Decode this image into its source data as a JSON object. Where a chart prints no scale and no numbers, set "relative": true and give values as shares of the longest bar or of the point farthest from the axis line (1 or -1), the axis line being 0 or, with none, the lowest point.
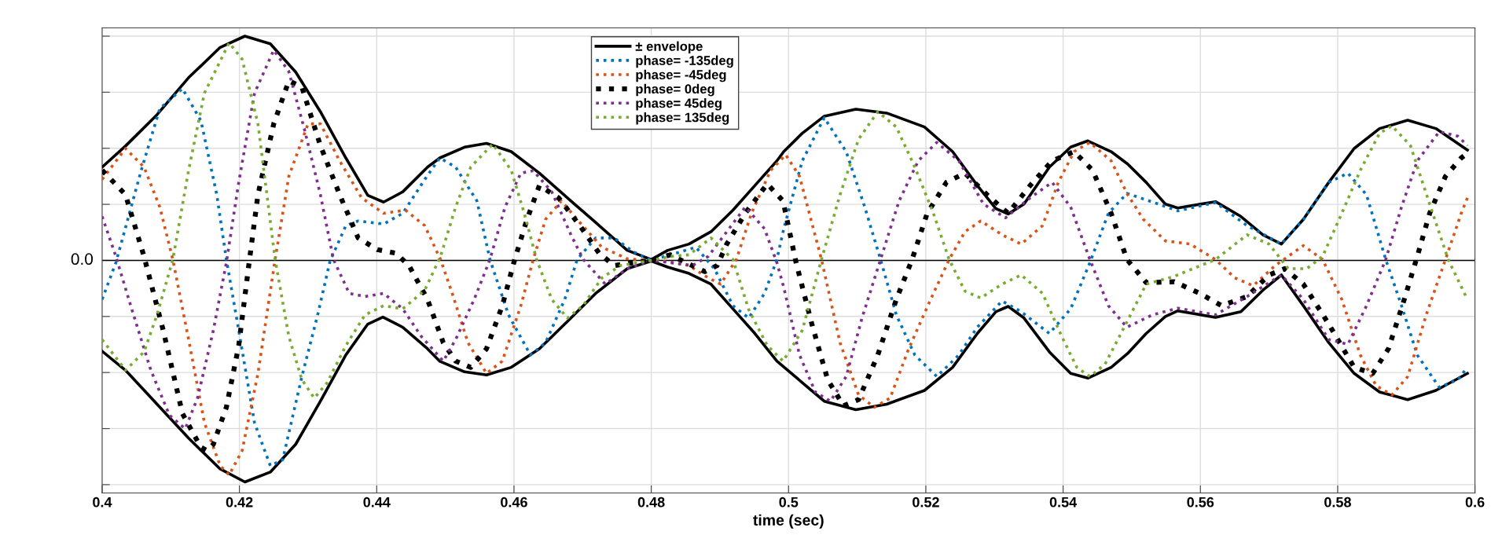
{
  "chart_data": {
    "type": "line",
    "xlabel": "time (sec)",
    "relative": true,
    "xlim": [
      0.4,
      0.6
    ],
    "xticks": [
      0.4,
      0.42,
      0.44,
      0.46,
      0.48,
      0.5,
      0.52,
      0.54,
      0.56,
      0.58,
      0.6
    ],
    "grid": true,
    "legend": "top",
    "marker": "none",
    "ref_lines": [
      {
        "axis": "y",
        "value": 0,
        "label": "0.0",
        "color": "#000000",
        "line_style": "solid"
      }
    ],
    "series": [
      {
        "name": "± envelope",
        "color": "#000000",
        "line_style": "solid",
        "x": [
          0.4,
          0.4034,
          0.408,
          0.4126,
          0.4172,
          0.4208,
          0.4245,
          0.4282,
          0.4318,
          0.4355,
          0.4387,
          0.441,
          0.4438,
          0.4474,
          0.4492,
          0.4528,
          0.456,
          0.4596,
          0.4637,
          0.4683,
          0.4719,
          0.4765,
          0.48,
          0.4824,
          0.4855,
          0.4887,
          0.4919,
          0.4951,
          0.4983,
          0.4993,
          0.502,
          0.5052,
          0.5098,
          0.5143,
          0.5198,
          0.5239,
          0.5275,
          0.5302,
          0.532,
          0.5343,
          0.538,
          0.5411,
          0.5436,
          0.547,
          0.5494,
          0.5521,
          0.5549,
          0.5567,
          0.5622,
          0.5659,
          0.5691,
          0.5718,
          0.575,
          0.5787,
          0.5824,
          0.5861,
          0.5902,
          0.5943,
          0.5989
        ],
        "values": [
          0.416,
          0.51,
          0.65,
          0.815,
          0.95,
          1.0,
          0.966,
          0.84,
          0.663,
          0.457,
          0.29,
          0.26,
          0.306,
          0.416,
          0.457,
          0.505,
          0.522,
          0.485,
          0.389,
          0.265,
          0.169,
          0.045,
          0.004,
          0.045,
          0.073,
          0.128,
          0.224,
          0.334,
          0.444,
          0.485,
          0.567,
          0.643,
          0.674,
          0.657,
          0.595,
          0.485,
          0.334,
          0.231,
          0.207,
          0.251,
          0.416,
          0.505,
          0.533,
          0.485,
          0.43,
          0.348,
          0.251,
          0.234,
          0.262,
          0.196,
          0.114,
          0.073,
          0.183,
          0.348,
          0.499,
          0.588,
          0.625,
          0.588,
          0.492
        ]
      },
      {
        "color": "#000000",
        "line_style": "solid",
        "x": [
          0.4,
          0.4034,
          0.408,
          0.4126,
          0.4172,
          0.4208,
          0.4245,
          0.4282,
          0.4318,
          0.4355,
          0.4387,
          0.4409,
          0.4438,
          0.4474,
          0.4492,
          0.4528,
          0.456,
          0.4596,
          0.4637,
          0.4683,
          0.4719,
          0.4765,
          0.48,
          0.4824,
          0.4855,
          0.4887,
          0.4919,
          0.4951,
          0.4983,
          0.502,
          0.5052,
          0.5098,
          0.5143,
          0.5198,
          0.5239,
          0.5275,
          0.5302,
          0.532,
          0.5343,
          0.538,
          0.5411,
          0.5436,
          0.547,
          0.5494,
          0.5521,
          0.5549,
          0.5567,
          0.5622,
          0.5659,
          0.5691,
          0.5718,
          0.575,
          0.5787,
          0.5824,
          0.5861,
          0.5902,
          0.5943,
          0.5989
        ],
        "values": [
          -0.405,
          -0.49,
          -0.641,
          -0.793,
          -0.93,
          -0.988,
          -0.944,
          -0.82,
          -0.628,
          -0.422,
          -0.284,
          -0.253,
          -0.298,
          -0.394,
          -0.45,
          -0.497,
          -0.511,
          -0.477,
          -0.394,
          -0.257,
          -0.147,
          -0.037,
          -0.003,
          -0.03,
          -0.058,
          -0.106,
          -0.216,
          -0.326,
          -0.449,
          -0.545,
          -0.628,
          -0.666,
          -0.641,
          -0.58,
          -0.477,
          -0.326,
          -0.229,
          -0.205,
          -0.257,
          -0.408,
          -0.504,
          -0.525,
          -0.477,
          -0.415,
          -0.326,
          -0.25,
          -0.225,
          -0.254,
          -0.229,
          -0.133,
          -0.065,
          -0.202,
          -0.367,
          -0.504,
          -0.587,
          -0.621,
          -0.58,
          -0.504
        ]
      },
      {
        "name": "phase= -135deg",
        "color": "#0072bd",
        "line_style": "dotted",
        "x": [
          0.4,
          0.402,
          0.4057,
          0.4084,
          0.4117,
          0.4144,
          0.4167,
          0.4181,
          0.4199,
          0.4222,
          0.4245,
          0.4263,
          0.4291,
          0.4314,
          0.4332,
          0.4355,
          0.4373,
          0.441,
          0.4438,
          0.447,
          0.4492,
          0.4515,
          0.4546,
          0.4565,
          0.4592,
          0.4624,
          0.4646,
          0.4674,
          0.4692,
          0.4719,
          0.4746,
          0.4774,
          0.48,
          0.4828,
          0.4865,
          0.4892,
          0.4919,
          0.4942,
          0.4965,
          0.4983,
          0.4993,
          0.502,
          0.5052,
          0.5084,
          0.5111,
          0.5134,
          0.5157,
          0.5184,
          0.5216,
          0.5248,
          0.5275,
          0.5311,
          0.5339,
          0.538,
          0.5411,
          0.5439,
          0.5466,
          0.5493,
          0.5539,
          0.5567,
          0.5622,
          0.5668,
          0.5718,
          0.575,
          0.5787,
          0.5815,
          0.5842,
          0.587,
          0.5893,
          0.5916,
          0.5948,
          0.5975,
          0.5989
        ],
        "values": [
          -0.174,
          -0.01,
          0.402,
          0.677,
          0.766,
          0.622,
          0.293,
          0.004,
          -0.312,
          -0.724,
          -0.916,
          -0.889,
          -0.518,
          -0.243,
          -0.003,
          0.155,
          0.176,
          0.162,
          0.21,
          0.361,
          0.457,
          0.416,
          0.265,
          0.004,
          -0.243,
          -0.422,
          -0.367,
          -0.174,
          0.004,
          0.1,
          0.1,
          0.038,
          0.0,
          0.025,
          0.059,
          -0.037,
          -0.202,
          -0.257,
          -0.147,
          0.004,
          0.141,
          0.444,
          0.636,
          0.485,
          0.238,
          0.004,
          -0.243,
          -0.422,
          -0.518,
          -0.422,
          -0.298,
          -0.181,
          -0.229,
          -0.326,
          -0.216,
          -0.01,
          0.21,
          0.299,
          0.251,
          0.221,
          0.258,
          0.155,
          0.073,
          0.183,
          0.348,
          0.389,
          0.293,
          0.004,
          -0.202,
          -0.422,
          -0.566,
          -0.532,
          -0.477
        ]
      },
      {
        "name": "phase= -45deg",
        "color": "#d95319",
        "line_style": "dotted",
        "x": [
          0.4,
          0.4034,
          0.4061,
          0.4084,
          0.4103,
          0.4126,
          0.4149,
          0.4172,
          0.4185,
          0.4204,
          0.4227,
          0.4252,
          0.4272,
          0.43,
          0.4318,
          0.4346,
          0.4378,
          0.441,
          0.4442,
          0.447,
          0.4493,
          0.451,
          0.4533,
          0.456,
          0.4583,
          0.461,
          0.4628,
          0.4646,
          0.4669,
          0.4696,
          0.4728,
          0.4765,
          0.48,
          0.4828,
          0.4855,
          0.4883,
          0.4901,
          0.4924,
          0.4946,
          0.4974,
          0.4996,
          0.5016,
          0.5048,
          0.5075,
          0.5102,
          0.5125,
          0.5148,
          0.5175,
          0.5207,
          0.5234,
          0.5257,
          0.528,
          0.5311,
          0.5339,
          0.537,
          0.5393,
          0.5416,
          0.5439,
          0.547,
          0.5494,
          0.5517,
          0.5549,
          0.5585,
          0.5622,
          0.565,
          0.5677,
          0.5709,
          0.575,
          0.5778,
          0.5806,
          0.5833,
          0.5856,
          0.5879,
          0.5902,
          0.5929,
          0.5957,
          0.598,
          0.5989
        ],
        "values": [
          0.361,
          0.499,
          0.416,
          0.238,
          0.004,
          -0.353,
          -0.724,
          -0.916,
          -0.957,
          -0.848,
          -0.504,
          0.004,
          0.375,
          0.609,
          0.609,
          0.444,
          0.279,
          0.21,
          0.224,
          0.155,
          0.004,
          -0.147,
          -0.367,
          -0.504,
          -0.449,
          -0.202,
          0.004,
          0.183,
          0.265,
          0.169,
          0.059,
          0.007,
          0.0,
          -0.007,
          -0.023,
          -0.078,
          -0.106,
          0.004,
          0.21,
          0.402,
          0.471,
          0.375,
          0.004,
          -0.367,
          -0.6,
          -0.655,
          -0.614,
          -0.394,
          -0.174,
          0.004,
          0.128,
          0.176,
          0.114,
          0.073,
          0.155,
          0.348,
          0.485,
          0.526,
          0.444,
          0.293,
          0.183,
          0.087,
          0.073,
          0.004,
          -0.078,
          -0.113,
          -0.023,
          0.066,
          0.004,
          -0.174,
          -0.422,
          -0.559,
          -0.6,
          -0.518,
          -0.243,
          0.004,
          0.21,
          0.279
        ]
      },
      {
        "name": "phase= 0deg",
        "color": "#000000",
        "line_style": "dotted",
        "x": [
          0.4,
          0.4034,
          0.4061,
          0.4089,
          0.4117,
          0.4144,
          0.4153,
          0.4162,
          0.4181,
          0.4199,
          0.4213,
          0.4227,
          0.425,
          0.4272,
          0.4291,
          0.4318,
          0.4346,
          0.4373,
          0.4401,
          0.4428,
          0.4447,
          0.4474,
          0.4497,
          0.4515,
          0.4537,
          0.456,
          0.4583,
          0.4601,
          0.4619,
          0.4637,
          0.4665,
          0.4696,
          0.4724,
          0.4746,
          0.4774,
          0.48,
          0.4828,
          0.4846,
          0.4878,
          0.4896,
          0.491,
          0.4937,
          0.4969,
          0.4992,
          0.5011,
          0.5034,
          0.5057,
          0.508,
          0.5102,
          0.513,
          0.5157,
          0.518,
          0.5202,
          0.523,
          0.5257,
          0.5289,
          0.532,
          0.5352,
          0.5384,
          0.5416,
          0.5443,
          0.547,
          0.5493,
          0.5521,
          0.5562,
          0.5599,
          0.5631,
          0.5668,
          0.57,
          0.5723,
          0.575,
          0.5787,
          0.5824,
          0.5851,
          0.5874,
          0.5897,
          0.5916,
          0.5934,
          0.5957,
          0.598,
          0.5989
        ],
        "values": [
          0.402,
          0.293,
          0.018,
          -0.312,
          -0.683,
          -0.834,
          -0.848,
          -0.82,
          -0.655,
          -0.38,
          -0.037,
          0.293,
          0.609,
          0.801,
          0.773,
          0.512,
          0.293,
          0.1,
          0.048,
          0.032,
          -0.023,
          -0.174,
          -0.367,
          -0.449,
          -0.477,
          -0.394,
          -0.202,
          0.004,
          0.183,
          0.334,
          0.279,
          0.155,
          0.032,
          -0.023,
          -0.01,
          0.0,
          0.025,
          -0.003,
          -0.05,
          -0.023,
          0.073,
          0.21,
          0.341,
          0.265,
          -0.01,
          -0.284,
          -0.532,
          -0.648,
          -0.621,
          -0.422,
          -0.174,
          0.004,
          0.21,
          0.348,
          0.389,
          0.293,
          0.21,
          0.334,
          0.444,
          0.485,
          0.402,
          0.21,
          0.004,
          -0.099,
          -0.095,
          -0.147,
          -0.202,
          -0.161,
          -0.065,
          -0.037,
          -0.106,
          -0.284,
          -0.477,
          -0.504,
          -0.394,
          -0.174,
          0.018,
          0.21,
          0.375,
          0.457,
          0.478
        ]
      },
      {
        "name": "phase= 45deg",
        "color": "#7e2f8e",
        "line_style": "dotted",
        "x": [
          0.4,
          0.402,
          0.4043,
          0.4071,
          0.4098,
          0.4121,
          0.4139,
          0.4162,
          0.4181,
          0.4199,
          0.4222,
          0.425,
          0.4272,
          0.4295,
          0.4318,
          0.4337,
          0.436,
          0.4383,
          0.441,
          0.4438,
          0.4465,
          0.4497,
          0.4515,
          0.4542,
          0.4565,
          0.4587,
          0.461,
          0.4628,
          0.4655,
          0.4683,
          0.4701,
          0.4733,
          0.4765,
          0.48,
          0.4828,
          0.486,
          0.4883,
          0.491,
          0.4937,
          0.4965,
          0.4983,
          0.4993,
          0.5016,
          0.5039,
          0.5061,
          0.5084,
          0.5107,
          0.5134,
          0.5161,
          0.5189,
          0.5216,
          0.5248,
          0.5284,
          0.5316,
          0.5352,
          0.5384,
          0.5411,
          0.5439,
          0.5466,
          0.5493,
          0.553,
          0.5567,
          0.5622,
          0.5668,
          0.5718,
          0.575,
          0.5787,
          0.5815,
          0.5842,
          0.587,
          0.5893,
          0.5916,
          0.5948,
          0.5975,
          0.5989
        ],
        "values": [
          0.196,
          0.018,
          -0.216,
          -0.49,
          -0.69,
          -0.751,
          -0.614,
          -0.312,
          -0.01,
          0.348,
          0.746,
          0.938,
          0.842,
          0.581,
          0.293,
          0.004,
          -0.147,
          -0.161,
          -0.147,
          -0.216,
          -0.339,
          -0.449,
          -0.353,
          -0.174,
          0.004,
          0.238,
          0.389,
          0.4,
          0.306,
          0.114,
          0.004,
          -0.106,
          -0.037,
          0.0,
          -0.01,
          -0.023,
          0.018,
          0.128,
          0.238,
          0.141,
          -0.01,
          -0.12,
          -0.422,
          -0.587,
          -0.628,
          -0.518,
          -0.257,
          0.004,
          0.265,
          0.444,
          0.526,
          0.444,
          0.251,
          0.19,
          0.279,
          0.348,
          0.238,
          0.004,
          -0.202,
          -0.298,
          -0.243,
          -0.213,
          -0.243,
          -0.161,
          -0.065,
          -0.174,
          -0.353,
          -0.374,
          -0.202,
          0.004,
          0.238,
          0.444,
          0.574,
          0.554,
          0.512
        ]
      },
      {
        "name": "phase= 135deg",
        "color": "#77ac30",
        "line_style": "dotted",
        "x": [
          0.4,
          0.4034,
          0.4061,
          0.408,
          0.4103,
          0.4126,
          0.4149,
          0.4185,
          0.4204,
          0.4227,
          0.4252,
          0.4272,
          0.4291,
          0.4309,
          0.4328,
          0.4355,
          0.4383,
          0.441,
          0.4438,
          0.447,
          0.4493,
          0.4515,
          0.4537,
          0.4569,
          0.4596,
          0.4615,
          0.4633,
          0.4655,
          0.4678,
          0.4701,
          0.4728,
          0.4755,
          0.48,
          0.4828,
          0.4855,
          0.4887,
          0.4919,
          0.4942,
          0.4969,
          0.4992,
          0.502,
          0.5048,
          0.5075,
          0.5102,
          0.513,
          0.5157,
          0.5184,
          0.5211,
          0.5234,
          0.5257,
          0.528,
          0.5311,
          0.5339,
          0.537,
          0.5398,
          0.542,
          0.5439,
          0.5461,
          0.5489,
          0.5521,
          0.5562,
          0.5622,
          0.5668,
          0.57,
          0.5728,
          0.5755,
          0.5778,
          0.5806,
          0.5833,
          0.5861,
          0.5879,
          0.5906,
          0.5934,
          0.5961,
          0.5989
        ],
        "values": [
          -0.353,
          -0.49,
          -0.408,
          -0.243,
          0.004,
          0.402,
          0.746,
          0.97,
          0.897,
          0.609,
          0.004,
          -0.339,
          -0.532,
          -0.614,
          -0.545,
          -0.38,
          -0.243,
          -0.202,
          -0.216,
          -0.133,
          0.018,
          0.238,
          0.416,
          0.519,
          0.402,
          0.21,
          0.004,
          -0.174,
          -0.257,
          -0.2,
          -0.078,
          -0.023,
          0.0,
          0.018,
          0.025,
          0.1,
          0.004,
          -0.22,
          -0.38,
          -0.449,
          -0.312,
          0.004,
          0.293,
          0.54,
          0.663,
          0.595,
          0.416,
          0.21,
          0.004,
          -0.137,
          -0.168,
          -0.106,
          -0.065,
          -0.147,
          -0.339,
          -0.477,
          -0.518,
          -0.463,
          -0.298,
          -0.106,
          -0.071,
          0.004,
          0.114,
          0.073,
          -0.037,
          -0.037,
          0.018,
          0.21,
          0.402,
          0.567,
          0.6,
          0.512,
          0.251,
          0.004,
          -0.174
        ]
      }
    ]
  }
}
